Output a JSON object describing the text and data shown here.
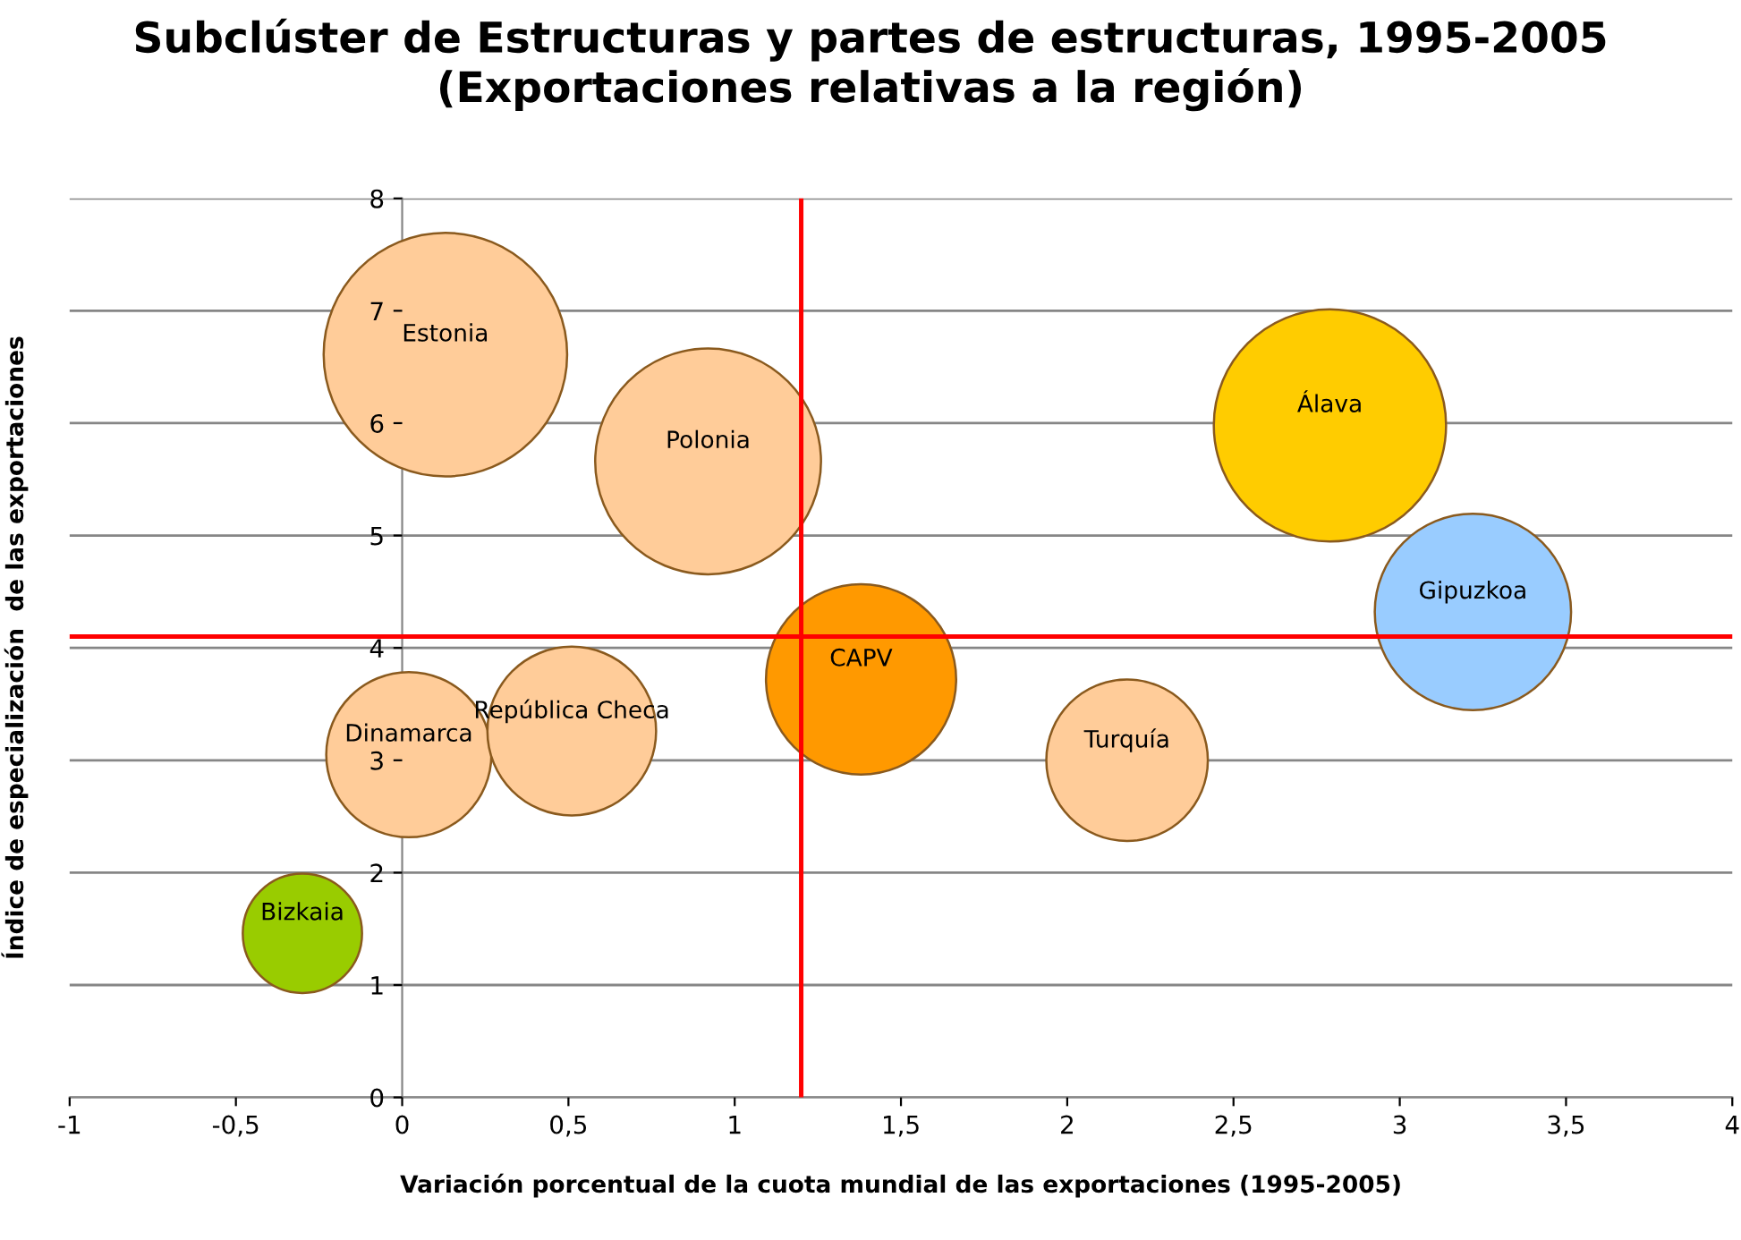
{
  "chart_data": {
    "type": "bubble",
    "title": "Subclúster de Estructuras y partes de estructuras, 1995-2005\n(Exportaciones relativas a la región)",
    "xlabel": "Variación porcentual de la cuota mundial de las exportaciones (1995-2005)",
    "ylabel": "Índice de especialización  de las exportaciones",
    "x": [
      0.13,
      0.92,
      2.79,
      3.22,
      1.38,
      2.18,
      0.02,
      0.51,
      -0.3
    ],
    "values": [
      6.61,
      5.66,
      5.98,
      4.32,
      3.72,
      3.0,
      3.05,
      3.26,
      1.46
    ],
    "sizes": [
      1,
      0.86,
      0.91,
      0.65,
      0.61,
      0.44,
      0.46,
      0.48,
      0.24
    ],
    "colors": [
      "#ffcc99",
      "#ffcc99",
      "#ffcc00",
      "#99ccff",
      "#ff9900",
      "#ffcc99",
      "#ffcc99",
      "#ffcc99",
      "#99cc00"
    ],
    "annotations": [
      {
        "text": "Estonia",
        "x": 0.13,
        "y": 6.61
      },
      {
        "text": "Polonia",
        "x": 0.92,
        "y": 5.66
      },
      {
        "text": "Álava",
        "x": 2.79,
        "y": 5.98
      },
      {
        "text": "Gipuzkoa",
        "x": 3.22,
        "y": 4.32
      },
      {
        "text": "CAPV",
        "x": 1.38,
        "y": 3.72
      },
      {
        "text": "Turquía",
        "x": 2.18,
        "y": 3.0
      },
      {
        "text": "Dinamarca",
        "x": 0.02,
        "y": 3.05
      },
      {
        "text": "República Checa",
        "x": 0.51,
        "y": 3.26
      },
      {
        "text": "Bizkaia",
        "x": -0.3,
        "y": 1.46
      }
    ],
    "ref_lines": [
      {
        "axis": "x",
        "value": 1.2,
        "label": null,
        "color": "#ff0000"
      },
      {
        "axis": "y",
        "value": 4.1,
        "label": null,
        "color": "#ff0000"
      }
    ],
    "xlim": [
      -1,
      4
    ],
    "xticks": [
      -1,
      {
        "value": -0.5,
        "label": "-0,5"
      },
      0,
      {
        "value": 0.5,
        "label": "0,5"
      },
      1,
      {
        "value": 1.5,
        "label": "1,5"
      },
      2,
      {
        "value": 2.5,
        "label": "2,5"
      },
      3,
      {
        "value": 3.5,
        "label": "3,5"
      },
      4
    ],
    "ylim": [
      0,
      8
    ],
    "yticks": [
      0,
      1,
      2,
      3,
      4,
      5,
      6,
      7,
      8
    ],
    "grid": "y"
  }
}
